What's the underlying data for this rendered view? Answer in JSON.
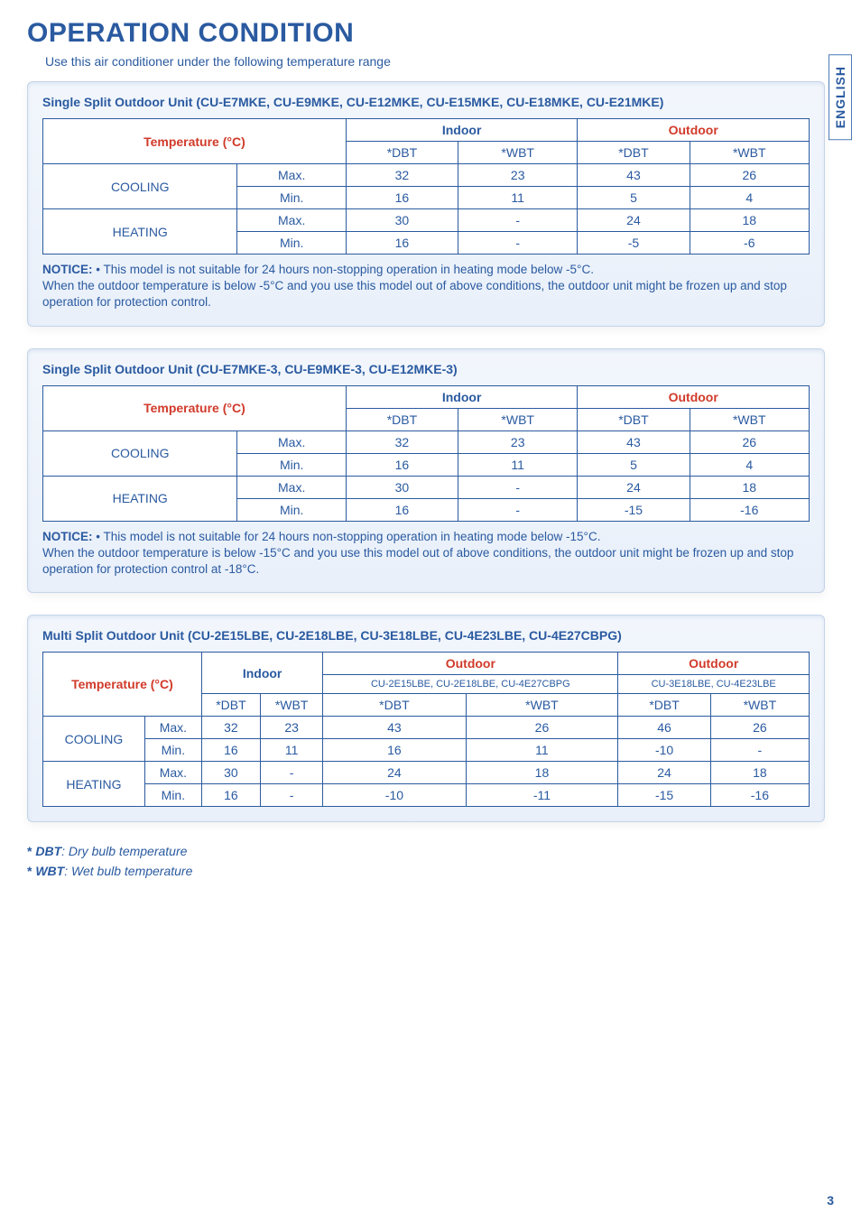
{
  "sideTab": "ENGLISH",
  "title": "OPERATION CONDITION",
  "intro": "Use this air conditioner under the following temperature range",
  "pageNumber": "3",
  "legend": {
    "dbt_star": "*",
    "dbt_term": "DBT",
    "dbt_text": ":  Dry bulb temperature",
    "wbt_star": "*",
    "wbt_term": "WBT",
    "wbt_text": ":  Wet bulb temperature"
  },
  "section1": {
    "title": "Single Split Outdoor Unit (CU-E7MKE, CU-E9MKE, CU-E12MKE, CU-E15MKE, CU-E18MKE, CU-E21MKE)",
    "colTemp": "Temperature (°C)",
    "colIndoor": "Indoor",
    "colOutdoor": "Outdoor",
    "colDBT": "*DBT",
    "colWBT": "*WBT",
    "cooling": "COOLING",
    "heating": "HEATING",
    "max": "Max.",
    "min": "Min.",
    "rows": {
      "cool_max": {
        "iD": "32",
        "iW": "23",
        "oD": "43",
        "oW": "26"
      },
      "cool_min": {
        "iD": "16",
        "iW": "11",
        "oD": "5",
        "oW": "4"
      },
      "heat_max": {
        "iD": "30",
        "iW": "-",
        "oD": "24",
        "oW": "18"
      },
      "heat_min": {
        "iD": "16",
        "iW": "-",
        "oD": "-5",
        "oW": "-6"
      }
    },
    "noticeLabel": "NOTICE:",
    "notice": " • This model is not suitable for 24 hours non-stopping operation in heating mode below -5°C.\nWhen the outdoor temperature is below -5°C and you use this model out of above conditions, the outdoor unit might be frozen up and stop operation for protection control."
  },
  "section2": {
    "title": "Single Split Outdoor Unit (CU-E7MKE-3, CU-E9MKE-3, CU-E12MKE-3)",
    "rows": {
      "cool_max": {
        "iD": "32",
        "iW": "23",
        "oD": "43",
        "oW": "26"
      },
      "cool_min": {
        "iD": "16",
        "iW": "11",
        "oD": "5",
        "oW": "4"
      },
      "heat_max": {
        "iD": "30",
        "iW": "-",
        "oD": "24",
        "oW": "18"
      },
      "heat_min": {
        "iD": "16",
        "iW": "-",
        "oD": "-15",
        "oW": "-16"
      }
    },
    "noticeLabel": "NOTICE:",
    "notice": " • This model is not suitable for 24 hours non-stopping operation in heating mode below -15°C.\nWhen the outdoor temperature is below -15°C and you use this model out of above conditions, the outdoor unit might be frozen up and stop operation for protection control at -18°C."
  },
  "section3": {
    "title": "Multi Split Outdoor Unit (CU-2E15LBE, CU-2E18LBE, CU-3E18LBE, CU-4E23LBE, CU-4E27CBPG)",
    "colOutdoor1": "Outdoor",
    "colOutdoor2": "Outdoor",
    "sub1": "CU-2E15LBE, CU-2E18LBE, CU-4E27CBPG",
    "sub2": "CU-3E18LBE, CU-4E23LBE",
    "rows": {
      "cool_max": {
        "iD": "32",
        "iW": "23",
        "o1D": "43",
        "o1W": "26",
        "o2D": "46",
        "o2W": "26"
      },
      "cool_min": {
        "iD": "16",
        "iW": "11",
        "o1D": "16",
        "o1W": "11",
        "o2D": "-10",
        "o2W": "-"
      },
      "heat_max": {
        "iD": "30",
        "iW": "-",
        "o1D": "24",
        "o1W": "18",
        "o2D": "24",
        "o2W": "18"
      },
      "heat_min": {
        "iD": "16",
        "iW": "-",
        "o1D": "-10",
        "o1W": "-11",
        "o2D": "-15",
        "o2W": "-16"
      }
    }
  }
}
